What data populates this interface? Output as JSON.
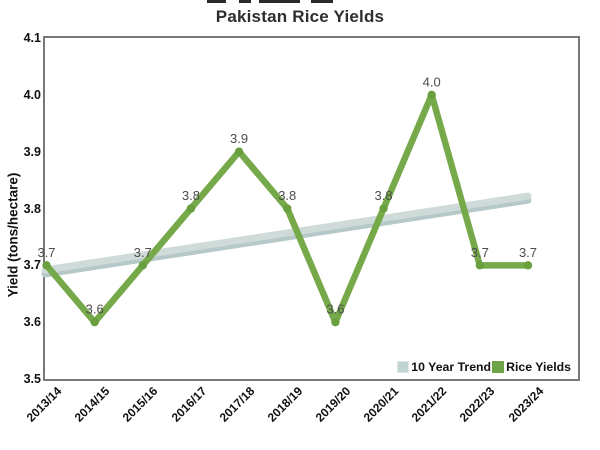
{
  "title": "Pakistan Rice Yields",
  "chart_data": {
    "type": "line",
    "title": "Pakistan Rice Yields",
    "categories": [
      "2013/14",
      "2014/15",
      "2015/16",
      "2016/17",
      "2017/18",
      "2018/19",
      "2019/20",
      "2020/21",
      "2021/22",
      "2022/23",
      "2023/24"
    ],
    "series": [
      {
        "name": "10 Year Trend",
        "style": "straight-trend",
        "values_start_end": [
          3.69,
          3.82
        ],
        "color": "#cedbd9",
        "shadow_color": "#b6c9c8"
      },
      {
        "name": "Rice Yields",
        "values": [
          3.7,
          3.6,
          3.7,
          3.8,
          3.9,
          3.8,
          3.6,
          3.8,
          4.0,
          3.7,
          3.7
        ],
        "data_labels": [
          "3.7",
          "3.6",
          "3.7",
          "3.8",
          "3.9",
          "3.8",
          "3.6",
          "3.8",
          "4.0",
          "3.7",
          "3.7"
        ],
        "color": "#76a94a",
        "marker": "circle",
        "marker_color": "#699f3e",
        "label_color": "#4c4c4c"
      }
    ],
    "xlabel": "",
    "ylabel": "Yield (tons/hectare)",
    "ylim": [
      3.5,
      4.1
    ],
    "yticks": [
      4.1,
      4.0,
      3.9,
      3.8,
      3.7,
      3.6,
      3.5
    ],
    "grid": false,
    "plot_border_color": "#787878",
    "legend": {
      "position": "inside-bottom-right",
      "items": [
        {
          "label": "10 Year Trend",
          "color": "#c2d4d2"
        },
        {
          "label": "Rice Yields",
          "color": "#6fa347"
        }
      ]
    }
  }
}
